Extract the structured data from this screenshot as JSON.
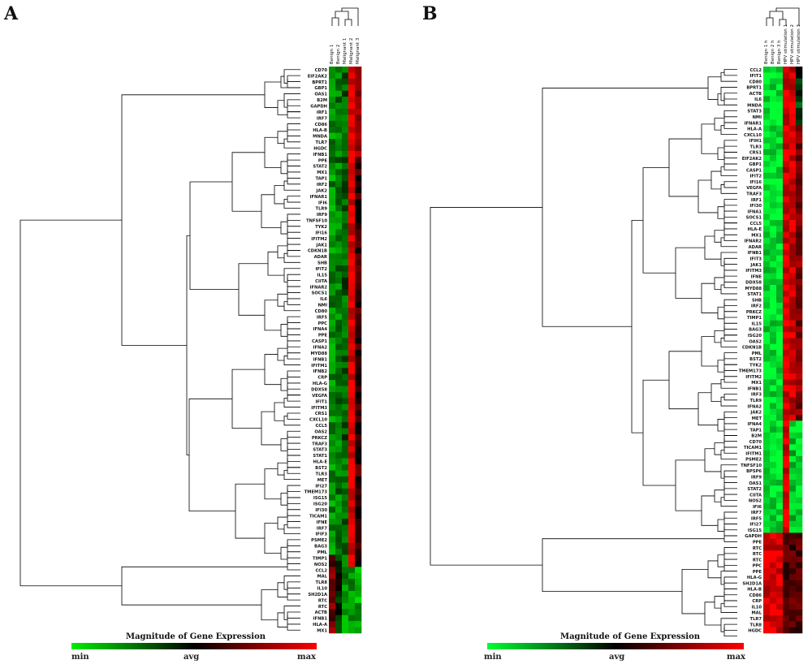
{
  "chart_data": [
    {
      "type": "heatmap",
      "panel": "A",
      "columns": [
        "Benign 1",
        "Benign 2",
        "Malignant 1",
        "Malignant 2",
        "Malignant 3"
      ],
      "rows": [
        "CD70",
        "EIF2AK2",
        "BPRT1",
        "GBP1",
        "OAS1",
        "B2M",
        "GAPDH",
        "IRF1",
        "IRF7",
        "CD86",
        "HLA-B",
        "MNDA",
        "TLR7",
        "HGDC",
        "IFNB1",
        "PPE",
        "STAT2",
        "MX1",
        "TAP1",
        "IRF2",
        "JAK2",
        "IFNAR1",
        "IFI6",
        "TLR9",
        "IRF9",
        "TNFSF10",
        "TYK2",
        "IFI16",
        "IFITM2",
        "JAK1",
        "CDKN1B",
        "ADAR",
        "SHB",
        "IFIT2",
        "IL15",
        "CIITA",
        "IFNAR2",
        "SOCS1",
        "IL6",
        "NMI",
        "CD80",
        "IRF5",
        "PPC",
        "IFNA4",
        "PPE",
        "CASP1",
        "IFNA2",
        "MYD88",
        "IFNB1",
        "IFITM1",
        "IFNB2",
        "CRP",
        "HLA-G",
        "DDX58",
        "VEGFA",
        "IFIT1",
        "IFITM3",
        "CRS1",
        "CXCL10",
        "CCL5",
        "OAS2",
        "PRKCZ",
        "TRAF3",
        "STAT3",
        "STAT1",
        "HLA-E",
        "BST2",
        "TLR3",
        "MET",
        "IFI27",
        "TMEM173",
        "ISG15",
        "ISG20",
        "IFI30",
        "TICAM1",
        "IFNE",
        "IRF7",
        "IFIF3",
        "PSME2",
        "BAG3",
        "PML",
        "TIMP1",
        "NOS2",
        "CCL2",
        "MAL",
        "TLR8",
        "IL10",
        "SH2D1A",
        "RTC",
        "RTC",
        "ACTB",
        "IFNB1",
        "HLA-A",
        "MX1"
      ],
      "legend": {
        "title": "Magnitude of Gene Expression",
        "min": "min",
        "mid": "avg",
        "max": "max",
        "min_color": "#00ee00",
        "mid_color": "#000000",
        "max_color": "#ff0000"
      }
    },
    {
      "type": "heatmap",
      "panel": "B",
      "columns": [
        "Benign 1 h",
        "Benign 2 h",
        "Benign 3 h",
        "HPV stimulation 1",
        "HPV stimulation 2",
        "HPV stimulation 3"
      ],
      "rows": [
        "CCL2",
        "IFIT1",
        "CD80",
        "BPRT1",
        "ACTB",
        "IL6",
        "MNDA",
        "STAT3",
        "NMI",
        "IFNAR1",
        "HLA-A",
        "CXCL10",
        "IFIH1",
        "TLR3",
        "CRS1",
        "EIF2AK2",
        "GBP1",
        "CASP1",
        "IFIT2",
        "IFI16",
        "VEGFA",
        "TRAF3",
        "IRF1",
        "IFI30",
        "IFNA1",
        "SOCS1",
        "CCL5",
        "HLA-E",
        "MX1",
        "IFNAR2",
        "ADAR",
        "IFNB1",
        "IFIT3",
        "JAK1",
        "IFITM3",
        "IFNE",
        "DDX58",
        "MYD88",
        "STAT1",
        "SHB",
        "IRF2",
        "PRKCZ",
        "TIMP1",
        "IL15",
        "BAG3",
        "ISG20",
        "OAS2",
        "CDKN1B",
        "PML",
        "BST2",
        "TYK2",
        "TMEM173",
        "IFITM2",
        "MX1",
        "IFNB1",
        "IRF3",
        "TLR9",
        "IFNA2",
        "JAK2",
        "MET",
        "IFNA4",
        "TAP1",
        "B2M",
        "CD70",
        "TICAM1",
        "IFITM1",
        "PSME2",
        "TNFSF10",
        "BPSP6",
        "IRF9",
        "OAS1",
        "STAT2",
        "CIITA",
        "NOS2",
        "IFI6",
        "IRF7",
        "IRF5",
        "IFI27",
        "ISG15",
        "GAPDH",
        "PPE",
        "RTC",
        "RTC",
        "RTC",
        "PPC",
        "PPE",
        "HLA-G",
        "SH2D1A",
        "HLA-B",
        "CD86",
        "CRP",
        "IL10",
        "MAL",
        "TLR7",
        "TLR8",
        "HGDC"
      ],
      "legend": {
        "title": "Magnitude of Gene Expression",
        "min": "min",
        "mid": "avg",
        "max": "max",
        "min_color": "#00ff33",
        "mid_color": "#000000",
        "max_color": "#ff0000"
      }
    }
  ],
  "panels": {
    "a_letter": "A",
    "b_letter": "B"
  }
}
